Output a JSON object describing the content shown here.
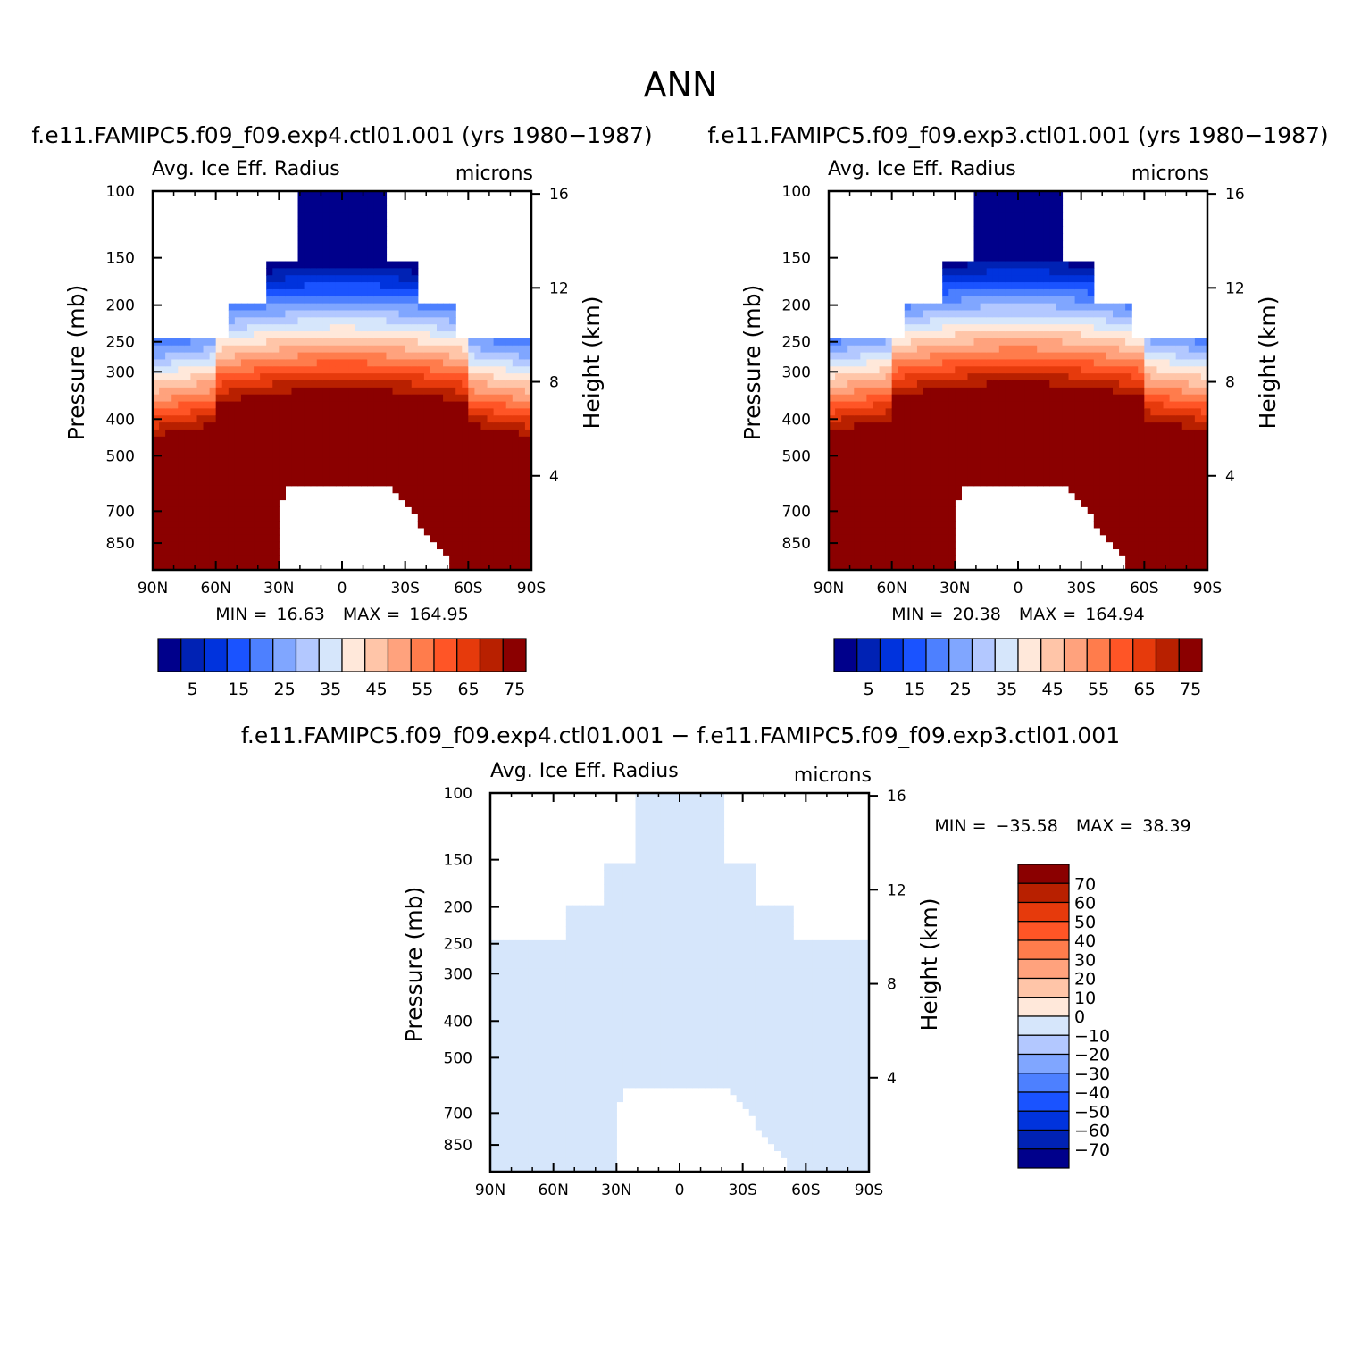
{
  "page_title": "ANN",
  "panels": [
    {
      "title": "f.e11.FAMIPC5.f09_f09.exp4.ctl01.001 (yrs 1980−1987)",
      "field_label": "Avg. Ice Eff. Radius",
      "units": "microns",
      "min_label": "MIN =",
      "min_value": "16.63",
      "max_label": "MAX =",
      "max_value": "164.95"
    },
    {
      "title": "f.e11.FAMIPC5.f09_f09.exp3.ctl01.001 (yrs 1980−1987)",
      "field_label": "Avg. Ice Eff. Radius",
      "units": "microns",
      "min_label": "MIN =",
      "min_value": "20.38",
      "max_label": "MAX =",
      "max_value": "164.94"
    },
    {
      "title": "f.e11.FAMIPC5.f09_f09.exp4.ctl01.001 − f.e11.FAMIPC5.f09_f09.exp3.ctl01.001",
      "field_label": "Avg. Ice Eff. Radius",
      "units": "microns",
      "min_label": "MIN =",
      "min_value": "−35.58",
      "max_label": "MAX =",
      "max_value": "38.39"
    }
  ],
  "chart_data": [
    {
      "type": "heatmap",
      "panel": "exp4",
      "title": "f.e11.FAMIPC5.f09_f09.exp4.ctl01.001 (yrs 1980−1987)",
      "xlabel": "",
      "ylabel": "Pressure (mb)",
      "y2label": "Height (km)",
      "x_ticks": [
        "90N",
        "60N",
        "30N",
        "0",
        "30S",
        "60S",
        "90S"
      ],
      "x_tick_values": [
        90,
        60,
        30,
        0,
        -30,
        -60,
        -90
      ],
      "y_ticks": [
        "100",
        "150",
        "200",
        "250",
        "300",
        "400",
        "500",
        "700",
        "850"
      ],
      "y_tick_values": [
        100,
        150,
        200,
        250,
        300,
        400,
        500,
        700,
        850
      ],
      "y_range": [
        100,
        1000
      ],
      "y2_ticks": [
        "16",
        "12",
        "8",
        "4"
      ],
      "y2_tick_values": [
        16,
        12,
        8,
        4
      ],
      "min": 16.63,
      "max": 164.95,
      "colorbar": {
        "orientation": "horizontal",
        "levels": [
          "5",
          "15",
          "25",
          "35",
          "45",
          "55",
          "65",
          "75"
        ],
        "colors": [
          "#00008b",
          "#0022b4",
          "#0033dd",
          "#1a53ff",
          "#4d80ff",
          "#80a6ff",
          "#b3c8ff",
          "#d6e6fb",
          "#ffe8da",
          "#ffc5a8",
          "#ffa27d",
          "#ff7c4c",
          "#ff5526",
          "#e63a0c",
          "#b82000",
          "#8b0000"
        ]
      }
    },
    {
      "type": "heatmap",
      "panel": "exp3",
      "title": "f.e11.FAMIPC5.f09_f09.exp3.ctl01.001 (yrs 1980−1987)",
      "xlabel": "",
      "ylabel": "Pressure (mb)",
      "y2label": "Height (km)",
      "x_ticks": [
        "90N",
        "60N",
        "30N",
        "0",
        "30S",
        "60S",
        "90S"
      ],
      "x_tick_values": [
        90,
        60,
        30,
        0,
        -30,
        -60,
        -90
      ],
      "y_ticks": [
        "100",
        "150",
        "200",
        "250",
        "300",
        "400",
        "500",
        "700",
        "850"
      ],
      "y_tick_values": [
        100,
        150,
        200,
        250,
        300,
        400,
        500,
        700,
        850
      ],
      "y_range": [
        100,
        1000
      ],
      "y2_ticks": [
        "16",
        "12",
        "8",
        "4"
      ],
      "y2_tick_values": [
        16,
        12,
        8,
        4
      ],
      "min": 20.38,
      "max": 164.94,
      "colorbar": {
        "orientation": "horizontal",
        "levels": [
          "5",
          "15",
          "25",
          "35",
          "45",
          "55",
          "65",
          "75"
        ],
        "colors": [
          "#00008b",
          "#0022b4",
          "#0033dd",
          "#1a53ff",
          "#4d80ff",
          "#80a6ff",
          "#b3c8ff",
          "#d6e6fb",
          "#ffe8da",
          "#ffc5a8",
          "#ffa27d",
          "#ff7c4c",
          "#ff5526",
          "#e63a0c",
          "#b82000",
          "#8b0000"
        ]
      }
    },
    {
      "type": "heatmap",
      "panel": "difference",
      "title": "f.e11.FAMIPC5.f09_f09.exp4.ctl01.001 − f.e11.FAMIPC5.f09_f09.exp3.ctl01.001",
      "xlabel": "",
      "ylabel": "Pressure (mb)",
      "y2label": "Height (km)",
      "x_ticks": [
        "90N",
        "60N",
        "30N",
        "0",
        "30S",
        "60S",
        "90S"
      ],
      "x_tick_values": [
        90,
        60,
        30,
        0,
        -30,
        -60,
        -90
      ],
      "y_ticks": [
        "100",
        "150",
        "200",
        "250",
        "300",
        "400",
        "500",
        "700",
        "850"
      ],
      "y_tick_values": [
        100,
        150,
        200,
        250,
        300,
        400,
        500,
        700,
        850
      ],
      "y_range": [
        100,
        1000
      ],
      "y2_ticks": [
        "16",
        "12",
        "8",
        "4"
      ],
      "y2_tick_values": [
        16,
        12,
        8,
        4
      ],
      "min": -35.58,
      "max": 38.39,
      "colorbar": {
        "orientation": "vertical",
        "levels": [
          "70",
          "60",
          "50",
          "40",
          "30",
          "20",
          "10",
          "0",
          "−10",
          "−20",
          "−30",
          "−40",
          "−50",
          "−60",
          "−70"
        ],
        "colors": [
          "#8b0000",
          "#b82000",
          "#e63a0c",
          "#ff5526",
          "#ff7c4c",
          "#ffa27d",
          "#ffc5a8",
          "#ffe8da",
          "#d6e6fb",
          "#b3c8ff",
          "#80a6ff",
          "#4d80ff",
          "#1a53ff",
          "#0033dd",
          "#0022b4",
          "#00008b"
        ]
      }
    }
  ]
}
